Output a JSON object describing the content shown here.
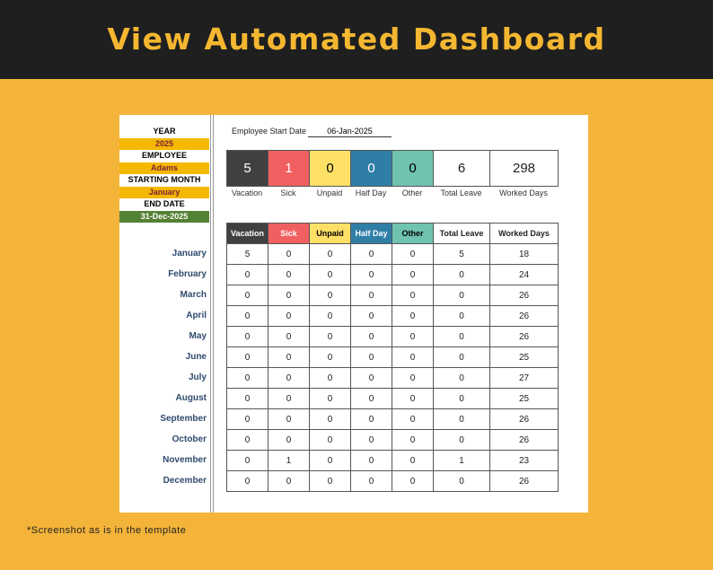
{
  "header": {
    "title": "View Automated Dashboard"
  },
  "sidebar": [
    {
      "label": "YEAR",
      "value": "2025"
    },
    {
      "label": "EMPLOYEE",
      "value": "Adams"
    },
    {
      "label": "STARTING MONTH",
      "value": "January"
    },
    {
      "label": "END DATE",
      "value": "31-Dec-2025"
    }
  ],
  "start_date": {
    "label": "Employee Start Date",
    "value": "06-Jan-2025"
  },
  "summary": [
    {
      "value": 5,
      "label": "Vacation"
    },
    {
      "value": 1,
      "label": "Sick"
    },
    {
      "value": 0,
      "label": "Unpaid"
    },
    {
      "value": 0,
      "label": "Half Day"
    },
    {
      "value": 0,
      "label": "Other"
    },
    {
      "value": 6,
      "label": "Total Leave"
    },
    {
      "value": 298,
      "label": "Worked Days"
    }
  ],
  "table": {
    "columns": [
      "Vacation",
      "Sick",
      "Unpaid",
      "Half Day",
      "Other",
      "Total Leave",
      "Worked Days"
    ],
    "rows": [
      {
        "month": "January",
        "cells": [
          5,
          0,
          0,
          0,
          0,
          5,
          18
        ]
      },
      {
        "month": "February",
        "cells": [
          0,
          0,
          0,
          0,
          0,
          0,
          24
        ]
      },
      {
        "month": "March",
        "cells": [
          0,
          0,
          0,
          0,
          0,
          0,
          26
        ]
      },
      {
        "month": "April",
        "cells": [
          0,
          0,
          0,
          0,
          0,
          0,
          26
        ]
      },
      {
        "month": "May",
        "cells": [
          0,
          0,
          0,
          0,
          0,
          0,
          26
        ]
      },
      {
        "month": "June",
        "cells": [
          0,
          0,
          0,
          0,
          0,
          0,
          25
        ]
      },
      {
        "month": "July",
        "cells": [
          0,
          0,
          0,
          0,
          0,
          0,
          27
        ]
      },
      {
        "month": "August",
        "cells": [
          0,
          0,
          0,
          0,
          0,
          0,
          25
        ]
      },
      {
        "month": "September",
        "cells": [
          0,
          0,
          0,
          0,
          0,
          0,
          26
        ]
      },
      {
        "month": "October",
        "cells": [
          0,
          0,
          0,
          0,
          0,
          0,
          26
        ]
      },
      {
        "month": "November",
        "cells": [
          0,
          1,
          0,
          0,
          0,
          1,
          23
        ]
      },
      {
        "month": "December",
        "cells": [
          0,
          0,
          0,
          0,
          0,
          0,
          26
        ]
      }
    ]
  },
  "footnote": "*Screenshot as is in the template"
}
